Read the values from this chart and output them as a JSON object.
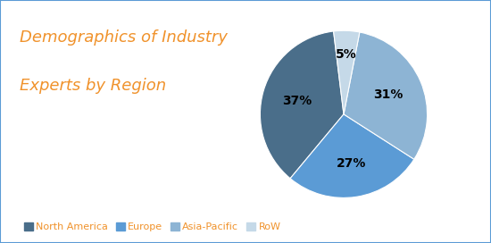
{
  "title_line1": "Demographics of Industry",
  "title_line2": "Experts by Region",
  "title_color": "#F0922B",
  "title_fontsize": 13,
  "slices": [
    37,
    27,
    31,
    5
  ],
  "labels": [
    "North America",
    "Europe",
    "Asia-Pacific",
    "RoW"
  ],
  "pct_labels": [
    "37%",
    "27%",
    "31%",
    "5%"
  ],
  "colors": [
    "#4A6E8A",
    "#5B9BD5",
    "#8DB4D4",
    "#C5D9E8"
  ],
  "legend_text_color": "#F0922B",
  "background_color": "#FFFFFF",
  "border_color": "#5B9BD5",
  "startangle": 97,
  "pct_offsets": [
    0.58,
    0.6,
    0.58,
    0.72
  ]
}
